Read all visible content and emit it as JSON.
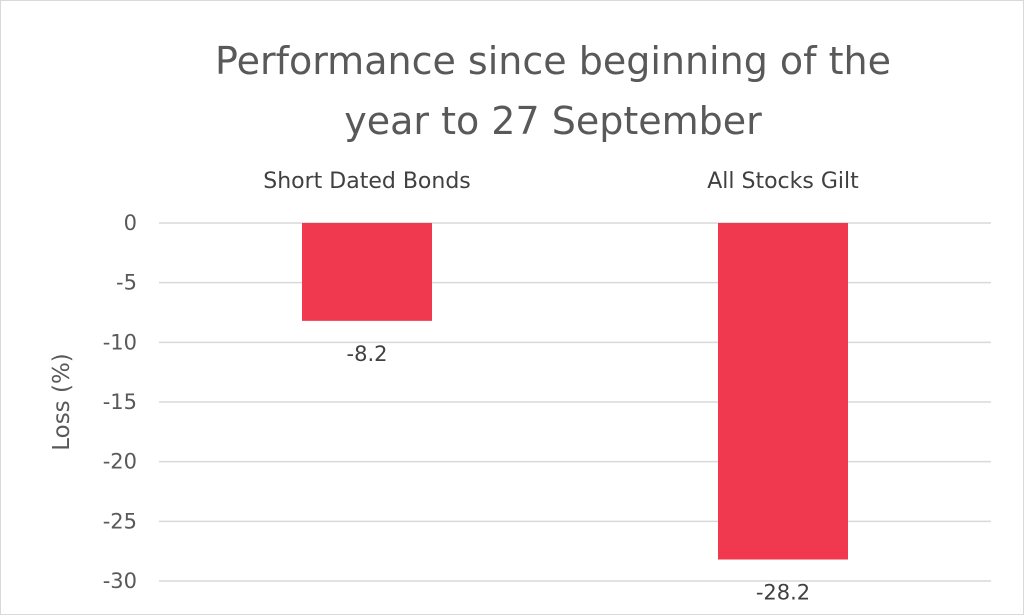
{
  "chart_data": {
    "type": "bar",
    "title": "Performance since beginning of the year to 27 September",
    "title_lines": [
      "Performance since beginning of the",
      "year to 27 September"
    ],
    "categories": [
      "Short Dated Bonds",
      "All Stocks Gilt"
    ],
    "values": [
      -8.2,
      -28.2
    ],
    "data_labels": [
      "-8.2",
      "-28.2"
    ],
    "xlabel": "",
    "ylabel": "Loss (%)",
    "ylim": [
      -30,
      0
    ],
    "yticks": [
      0,
      -5,
      -10,
      -15,
      -20,
      -25,
      -30
    ],
    "ytick_labels": [
      "0",
      "-5",
      "-10",
      "-15",
      "-20",
      "-25",
      "-30"
    ],
    "category_axis_position": "top",
    "grid": true,
    "legend": "none",
    "bar_color": "#f0384f"
  }
}
